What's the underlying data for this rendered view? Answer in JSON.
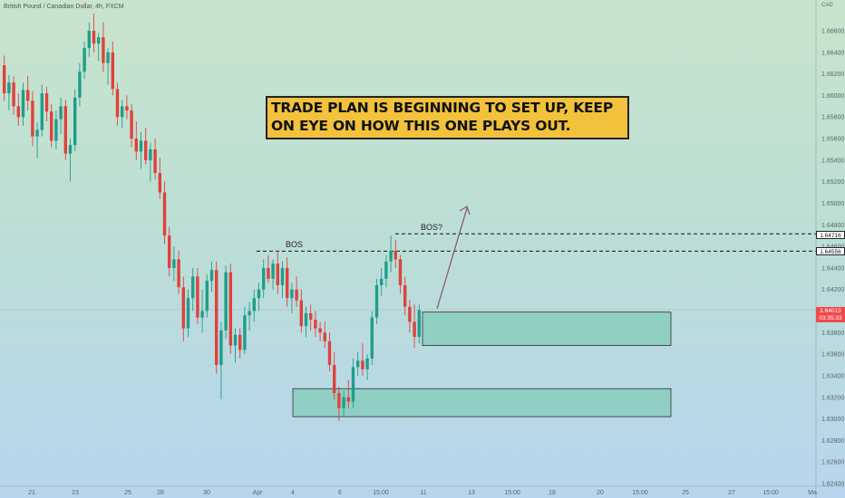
{
  "header": {
    "symbol_title": "British Pound / Canadian Dollar, 4h, FXCM",
    "currency": "CAD"
  },
  "trade_note": {
    "line1": "TRADE PLAN IS BEGINNING TO SET UP, KEEP",
    "line2": "ON EYE ON HOW THIS ONE PLAYS OUT."
  },
  "annotations": {
    "bos_left": "BOS",
    "bos_right": "BOS?"
  },
  "price_tags": {
    "current_price": "1.64013",
    "countdown": "03:35:33",
    "level_high": "1.64716",
    "level_low": "1.64556"
  },
  "colors": {
    "bull_candle": "#1f9e8a",
    "bear_candle": "#e0413b",
    "zone_fill": "#7fcbb7",
    "note_bg": "#f2c23c"
  },
  "chart_data": {
    "type": "candlestick",
    "title": "British Pound / Canadian Dollar, 4h, FXCM",
    "ylabel": "CAD",
    "ylim": [
      1.624,
      1.668
    ],
    "y_ticks": [
      "1.66600",
      "1.66400",
      "1.66200",
      "1.66000",
      "1.65800",
      "1.65600",
      "1.65400",
      "1.65200",
      "1.65000",
      "1.64800",
      "1.64600",
      "1.64400",
      "1.64200",
      "1.64000",
      "1.63800",
      "1.63600",
      "1.63400",
      "1.63200",
      "1.63000",
      "1.62800",
      "1.62600",
      "1.62400"
    ],
    "x_ticks": [
      "21",
      "23",
      "25",
      "28",
      "30",
      "Apr",
      "4",
      "6",
      "15:00",
      "11",
      "13",
      "15:00",
      "18",
      "20",
      "15:00",
      "25",
      "27",
      "15:00",
      "Ma"
    ],
    "horizontal_levels": [
      {
        "label": "BOS",
        "value": 1.64556,
        "style": "dashed"
      },
      {
        "label": "BOS?",
        "value": 1.64716,
        "style": "dashed"
      }
    ],
    "zones": [
      {
        "name": "demand-zone-upper",
        "y_top": 1.6399,
        "y_bottom": 1.6368
      },
      {
        "name": "demand-zone-lower",
        "y_top": 1.6328,
        "y_bottom": 1.6302
      }
    ],
    "current_price": 1.64013,
    "candles": [
      {
        "o": 1.6628,
        "h": 1.6637,
        "l": 1.6595,
        "c": 1.6602
      },
      {
        "o": 1.6602,
        "h": 1.6619,
        "l": 1.6586,
        "c": 1.6612
      },
      {
        "o": 1.6612,
        "h": 1.6618,
        "l": 1.6582,
        "c": 1.659
      },
      {
        "o": 1.659,
        "h": 1.6602,
        "l": 1.6572,
        "c": 1.658
      },
      {
        "o": 1.658,
        "h": 1.6612,
        "l": 1.6572,
        "c": 1.6605
      },
      {
        "o": 1.6605,
        "h": 1.6618,
        "l": 1.6586,
        "c": 1.6595
      },
      {
        "o": 1.6595,
        "h": 1.6604,
        "l": 1.6553,
        "c": 1.6562
      },
      {
        "o": 1.6562,
        "h": 1.6575,
        "l": 1.6542,
        "c": 1.6568
      },
      {
        "o": 1.6568,
        "h": 1.661,
        "l": 1.6562,
        "c": 1.6602
      },
      {
        "o": 1.6602,
        "h": 1.6608,
        "l": 1.6576,
        "c": 1.6585
      },
      {
        "o": 1.6585,
        "h": 1.6592,
        "l": 1.6552,
        "c": 1.6558
      },
      {
        "o": 1.6558,
        "h": 1.6586,
        "l": 1.655,
        "c": 1.6578
      },
      {
        "o": 1.6578,
        "h": 1.6598,
        "l": 1.6564,
        "c": 1.659
      },
      {
        "o": 1.659,
        "h": 1.6596,
        "l": 1.654,
        "c": 1.6546
      },
      {
        "o": 1.6546,
        "h": 1.656,
        "l": 1.652,
        "c": 1.6554
      },
      {
        "o": 1.6554,
        "h": 1.6606,
        "l": 1.6548,
        "c": 1.6598
      },
      {
        "o": 1.6598,
        "h": 1.663,
        "l": 1.659,
        "c": 1.6622
      },
      {
        "o": 1.6622,
        "h": 1.665,
        "l": 1.6615,
        "c": 1.6644
      },
      {
        "o": 1.6644,
        "h": 1.6668,
        "l": 1.6636,
        "c": 1.666
      },
      {
        "o": 1.666,
        "h": 1.6676,
        "l": 1.664,
        "c": 1.6648
      },
      {
        "o": 1.6648,
        "h": 1.6658,
        "l": 1.6632,
        "c": 1.6654
      },
      {
        "o": 1.6654,
        "h": 1.6668,
        "l": 1.6622,
        "c": 1.663
      },
      {
        "o": 1.663,
        "h": 1.6644,
        "l": 1.661,
        "c": 1.664
      },
      {
        "o": 1.664,
        "h": 1.665,
        "l": 1.66,
        "c": 1.6606
      },
      {
        "o": 1.6606,
        "h": 1.6612,
        "l": 1.6572,
        "c": 1.658
      },
      {
        "o": 1.658,
        "h": 1.6596,
        "l": 1.657,
        "c": 1.659
      },
      {
        "o": 1.659,
        "h": 1.66,
        "l": 1.6578,
        "c": 1.6586
      },
      {
        "o": 1.6586,
        "h": 1.6592,
        "l": 1.6552,
        "c": 1.656
      },
      {
        "o": 1.656,
        "h": 1.6576,
        "l": 1.654,
        "c": 1.6548
      },
      {
        "o": 1.6548,
        "h": 1.6566,
        "l": 1.6532,
        "c": 1.6558
      },
      {
        "o": 1.6558,
        "h": 1.657,
        "l": 1.6536,
        "c": 1.654
      },
      {
        "o": 1.654,
        "h": 1.6556,
        "l": 1.652,
        "c": 1.655
      },
      {
        "o": 1.655,
        "h": 1.656,
        "l": 1.6522,
        "c": 1.6528
      },
      {
        "o": 1.6528,
        "h": 1.6542,
        "l": 1.6504,
        "c": 1.651
      },
      {
        "o": 1.651,
        "h": 1.652,
        "l": 1.6462,
        "c": 1.647
      },
      {
        "o": 1.647,
        "h": 1.6478,
        "l": 1.6432,
        "c": 1.644
      },
      {
        "o": 1.644,
        "h": 1.646,
        "l": 1.6428,
        "c": 1.6448
      },
      {
        "o": 1.6448,
        "h": 1.6456,
        "l": 1.6416,
        "c": 1.6422
      },
      {
        "o": 1.6422,
        "h": 1.6432,
        "l": 1.6372,
        "c": 1.6384
      },
      {
        "o": 1.6384,
        "h": 1.642,
        "l": 1.6376,
        "c": 1.6412
      },
      {
        "o": 1.6412,
        "h": 1.644,
        "l": 1.64,
        "c": 1.6432
      },
      {
        "o": 1.6432,
        "h": 1.644,
        "l": 1.6388,
        "c": 1.6394
      },
      {
        "o": 1.6394,
        "h": 1.642,
        "l": 1.638,
        "c": 1.64
      },
      {
        "o": 1.64,
        "h": 1.6434,
        "l": 1.6394,
        "c": 1.6428
      },
      {
        "o": 1.6428,
        "h": 1.6446,
        "l": 1.6418,
        "c": 1.6438
      },
      {
        "o": 1.6438,
        "h": 1.6446,
        "l": 1.6342,
        "c": 1.635
      },
      {
        "o": 1.635,
        "h": 1.639,
        "l": 1.6318,
        "c": 1.6382
      },
      {
        "o": 1.6382,
        "h": 1.6442,
        "l": 1.6374,
        "c": 1.6436
      },
      {
        "o": 1.6436,
        "h": 1.6444,
        "l": 1.636,
        "c": 1.6368
      },
      {
        "o": 1.6368,
        "h": 1.6384,
        "l": 1.6352,
        "c": 1.6378
      },
      {
        "o": 1.6378,
        "h": 1.6384,
        "l": 1.6356,
        "c": 1.6364
      },
      {
        "o": 1.6364,
        "h": 1.6404,
        "l": 1.636,
        "c": 1.6396
      },
      {
        "o": 1.6396,
        "h": 1.6408,
        "l": 1.6382,
        "c": 1.64
      },
      {
        "o": 1.64,
        "h": 1.642,
        "l": 1.639,
        "c": 1.6412
      },
      {
        "o": 1.6412,
        "h": 1.6426,
        "l": 1.64,
        "c": 1.642
      },
      {
        "o": 1.642,
        "h": 1.6448,
        "l": 1.6412,
        "c": 1.644
      },
      {
        "o": 1.644,
        "h": 1.6452,
        "l": 1.6426,
        "c": 1.643
      },
      {
        "o": 1.643,
        "h": 1.6448,
        "l": 1.642,
        "c": 1.6444
      },
      {
        "o": 1.6444,
        "h": 1.6456,
        "l": 1.6416,
        "c": 1.6424
      },
      {
        "o": 1.6424,
        "h": 1.6446,
        "l": 1.6412,
        "c": 1.644
      },
      {
        "o": 1.644,
        "h": 1.645,
        "l": 1.6404,
        "c": 1.6412
      },
      {
        "o": 1.6412,
        "h": 1.6426,
        "l": 1.6398,
        "c": 1.642
      },
      {
        "o": 1.642,
        "h": 1.6432,
        "l": 1.6404,
        "c": 1.641
      },
      {
        "o": 1.641,
        "h": 1.642,
        "l": 1.638,
        "c": 1.6386
      },
      {
        "o": 1.6386,
        "h": 1.6404,
        "l": 1.6376,
        "c": 1.6398
      },
      {
        "o": 1.6398,
        "h": 1.6406,
        "l": 1.6382,
        "c": 1.6392
      },
      {
        "o": 1.6392,
        "h": 1.64,
        "l": 1.6376,
        "c": 1.6384
      },
      {
        "o": 1.6384,
        "h": 1.639,
        "l": 1.6372,
        "c": 1.638
      },
      {
        "o": 1.638,
        "h": 1.639,
        "l": 1.6366,
        "c": 1.6372
      },
      {
        "o": 1.6372,
        "h": 1.638,
        "l": 1.6344,
        "c": 1.635
      },
      {
        "o": 1.635,
        "h": 1.6362,
        "l": 1.6318,
        "c": 1.6324
      },
      {
        "o": 1.6324,
        "h": 1.633,
        "l": 1.6298,
        "c": 1.631
      },
      {
        "o": 1.631,
        "h": 1.6326,
        "l": 1.6302,
        "c": 1.632
      },
      {
        "o": 1.632,
        "h": 1.6336,
        "l": 1.631,
        "c": 1.6316
      },
      {
        "o": 1.6316,
        "h": 1.6356,
        "l": 1.631,
        "c": 1.6348
      },
      {
        "o": 1.6348,
        "h": 1.6362,
        "l": 1.634,
        "c": 1.6354
      },
      {
        "o": 1.6354,
        "h": 1.637,
        "l": 1.634,
        "c": 1.6346
      },
      {
        "o": 1.6346,
        "h": 1.636,
        "l": 1.6336,
        "c": 1.6356
      },
      {
        "o": 1.6356,
        "h": 1.64,
        "l": 1.635,
        "c": 1.6394
      },
      {
        "o": 1.6394,
        "h": 1.643,
        "l": 1.6388,
        "c": 1.6424
      },
      {
        "o": 1.6424,
        "h": 1.644,
        "l": 1.6414,
        "c": 1.643
      },
      {
        "o": 1.643,
        "h": 1.6452,
        "l": 1.6422,
        "c": 1.6446
      },
      {
        "o": 1.6446,
        "h": 1.647,
        "l": 1.6436,
        "c": 1.6456
      },
      {
        "o": 1.6456,
        "h": 1.6466,
        "l": 1.644,
        "c": 1.6448
      },
      {
        "o": 1.6448,
        "h": 1.6452,
        "l": 1.6416,
        "c": 1.6424
      },
      {
        "o": 1.6424,
        "h": 1.6432,
        "l": 1.6396,
        "c": 1.6404
      },
      {
        "o": 1.6404,
        "h": 1.641,
        "l": 1.638,
        "c": 1.639
      },
      {
        "o": 1.639,
        "h": 1.6406,
        "l": 1.6366,
        "c": 1.6376
      },
      {
        "o": 1.6376,
        "h": 1.6406,
        "l": 1.637,
        "c": 1.6401
      }
    ]
  }
}
